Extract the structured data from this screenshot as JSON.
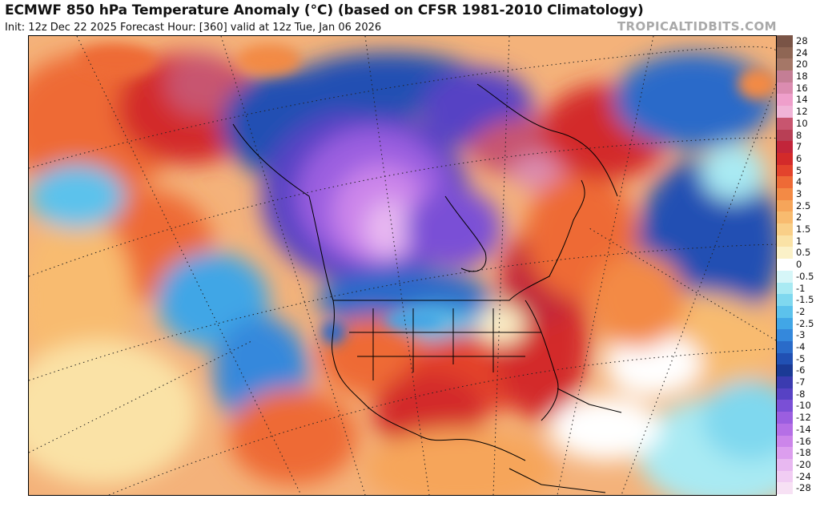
{
  "header": {
    "title": "ECMWF 850 hPa Temperature Anomaly (°C) (based on CFSR 1981-2010 Climatology)",
    "subtitle": "Init: 12z Dec 22 2025   Forecast Hour: [360]   valid at 12z Tue, Jan 06 2026",
    "watermark": "TROPICALTIDBITS.COM"
  },
  "legend": {
    "entries": [
      {
        "label": "28",
        "color": "#7a5446"
      },
      {
        "label": "24",
        "color": "#8f6654"
      },
      {
        "label": "20",
        "color": "#a57767"
      },
      {
        "label": "18",
        "color": "#c47e95"
      },
      {
        "label": "16",
        "color": "#db8cb0"
      },
      {
        "label": "14",
        "color": "#ef9fcb"
      },
      {
        "label": "12",
        "color": "#f0b4d7"
      },
      {
        "label": "10",
        "color": "#c8556f"
      },
      {
        "label": "8",
        "color": "#b83f55"
      },
      {
        "label": "7",
        "color": "#c2253a"
      },
      {
        "label": "6",
        "color": "#d32a2a"
      },
      {
        "label": "5",
        "color": "#e3432c"
      },
      {
        "label": "4",
        "color": "#ee6a36"
      },
      {
        "label": "3",
        "color": "#f38a45"
      },
      {
        "label": "2.5",
        "color": "#f6a55a"
      },
      {
        "label": "2",
        "color": "#f8bb6f"
      },
      {
        "label": "1.5",
        "color": "#f9cf88"
      },
      {
        "label": "1",
        "color": "#fae2a6"
      },
      {
        "label": "0.5",
        "color": "#fbf1c8"
      },
      {
        "label": "0",
        "color": "#ffffff"
      },
      {
        "label": "-0.5",
        "color": "#d6f6f8"
      },
      {
        "label": "-1",
        "color": "#a9eaf3"
      },
      {
        "label": "-1.5",
        "color": "#7fd8ef"
      },
      {
        "label": "-2",
        "color": "#5cc2ec"
      },
      {
        "label": "-2.5",
        "color": "#41a6e6"
      },
      {
        "label": "-3",
        "color": "#3488dc"
      },
      {
        "label": "-4",
        "color": "#2a6bc9"
      },
      {
        "label": "-5",
        "color": "#2150b3"
      },
      {
        "label": "-6",
        "color": "#1b3a95"
      },
      {
        "label": "-7",
        "color": "#3b3bb0"
      },
      {
        "label": "-8",
        "color": "#5742c4"
      },
      {
        "label": "-10",
        "color": "#7a4fd6"
      },
      {
        "label": "-12",
        "color": "#9b5ee0"
      },
      {
        "label": "-14",
        "color": "#b56fe6"
      },
      {
        "label": "-16",
        "color": "#cc85ea"
      },
      {
        "label": "-18",
        "color": "#dc9eee"
      },
      {
        "label": "-20",
        "color": "#e8b8f1"
      },
      {
        "label": "-24",
        "color": "#f1cdf3"
      },
      {
        "label": "-28",
        "color": "#f7e1f4"
      }
    ]
  }
}
